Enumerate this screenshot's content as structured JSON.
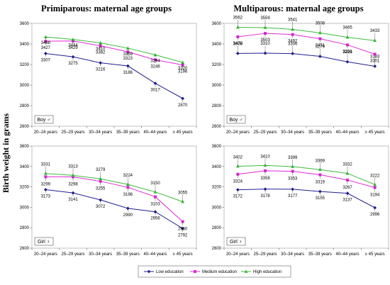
{
  "figure": {
    "ylabel": "Birth weight in grams",
    "col_titles": [
      "Primiparous: maternal age groups",
      "Multiparous: maternal age groups"
    ]
  },
  "legend": [
    {
      "name": "Low education",
      "color": "#1f1f8f",
      "marker": "diamond"
    },
    {
      "name": "Medium education",
      "color": "#e02ad6",
      "marker": "square"
    },
    {
      "name": "High education",
      "color": "#3dbb3d",
      "marker": "triangle"
    }
  ],
  "chart_data": [
    {
      "type": "line",
      "panel": "top-left",
      "title": "Primiparous: maternal age groups",
      "tag": "Boy ♂",
      "categories": [
        "20–24 years",
        "25–29 years",
        "30–34 years",
        "35–39 years",
        "40–44 years",
        "≥ 45 years"
      ],
      "ylim": [
        2600,
        3600
      ],
      "yticks": [
        2600,
        2800,
        3000,
        3200,
        3400,
        3600
      ],
      "series": [
        {
          "name": "Low education",
          "values": [
            3307,
            3275,
            3216,
            3186,
            3017,
            2870
          ]
        },
        {
          "name": "Medium education",
          "values": [
            3427,
            3429,
            3382,
            3323,
            3246,
            3196
          ]
        },
        {
          "name": "High education",
          "values": [
            3468,
            3444,
            3410,
            3359,
            3294,
            3220
          ]
        }
      ]
    },
    {
      "type": "line",
      "panel": "top-right",
      "title": "Multiparous: maternal age groups",
      "tag": "Boy ♂",
      "categories": [
        "20–24 years",
        "25–29 years",
        "30–34 years",
        "35–39 years",
        "40–44 years",
        "≥ 45 years"
      ],
      "ylim": [
        2600,
        3600
      ],
      "yticks": [
        2600,
        2800,
        3000,
        3200,
        3400,
        3600
      ],
      "series": [
        {
          "name": "Low education",
          "values": [
            3308,
            3310,
            3306,
            3279,
            3226,
            3183
          ]
        },
        {
          "name": "Medium education",
          "values": [
            3470,
            3503,
            3492,
            3451,
            3391,
            3301
          ]
        },
        {
          "name": "High education",
          "values": [
            3562,
            3559,
            3541,
            3508,
            3465,
            3433
          ]
        }
      ]
    },
    {
      "type": "line",
      "panel": "bottom-left",
      "title": "",
      "tag": "Girl ♀",
      "categories": [
        "20–24 years",
        "25–29 years",
        "30–34 years",
        "35–39 years",
        "40–44 years",
        "≥ 45 years"
      ],
      "ylim": [
        2600,
        3600
      ],
      "yticks": [
        2600,
        2800,
        3000,
        3200,
        3400,
        3600
      ],
      "series": [
        {
          "name": "Low education",
          "values": [
            3173,
            3141,
            3072,
            2990,
            2956,
            2792
          ]
        },
        {
          "name": "Medium education",
          "values": [
            3299,
            3298,
            3255,
            3196,
            3103,
            2860
          ]
        },
        {
          "name": "High education",
          "values": [
            3331,
            3313,
            3279,
            3224,
            3150,
            3055
          ]
        }
      ]
    },
    {
      "type": "line",
      "panel": "bottom-right",
      "title": "",
      "tag": "Girl ♀",
      "categories": [
        "20–24 years",
        "25–29 years",
        "30–34 years",
        "35–39 years",
        "40–44 years",
        "≥ 45 years"
      ],
      "ylim": [
        2600,
        3600
      ],
      "yticks": [
        2600,
        2800,
        3000,
        3200,
        3400,
        3600
      ],
      "series": [
        {
          "name": "Low education",
          "values": [
            3172,
            3178,
            3177,
            3155,
            3137,
            2996
          ]
        },
        {
          "name": "Medium education",
          "values": [
            3324,
            3358,
            3353,
            3319,
            3267,
            3194
          ]
        },
        {
          "name": "High education",
          "values": [
            3402,
            3410,
            3399,
            3369,
            3332,
            3222
          ]
        }
      ]
    }
  ]
}
